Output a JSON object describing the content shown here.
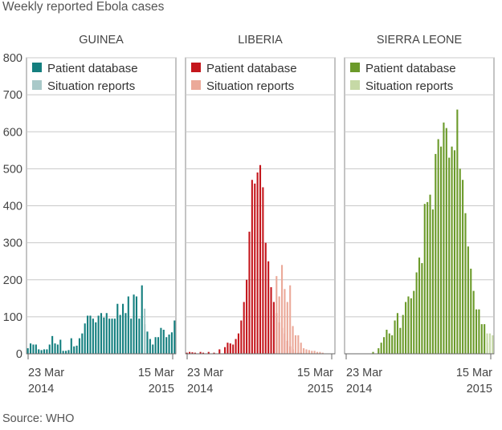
{
  "title": "Weekly reported Ebola cases",
  "source": "Source: WHO",
  "colors": {
    "guinea": {
      "patient": "#147f7f",
      "situation": "#a9c9c9"
    },
    "liberia": {
      "patient": "#c4161c",
      "situation": "#eba999"
    },
    "sierra_leone": {
      "patient": "#6b9a2a",
      "situation": "#c6d9a6"
    }
  },
  "chart_data": [
    {
      "type": "bar",
      "title": "GUINEA",
      "ylim": [
        0,
        800
      ],
      "yticks": [
        "0",
        "100",
        "200",
        "300",
        "400",
        "500",
        "600",
        "700",
        "800"
      ],
      "xticks": [
        {
          "line1": "23 Mar",
          "line2": "2014"
        },
        {
          "line1": "15 Mar",
          "line2": "2015"
        }
      ],
      "legend": [
        "Patient database",
        "Situation reports"
      ],
      "legend_position": "top-left",
      "grid": true,
      "series": [
        {
          "name": "Patient database",
          "values": [
            15,
            28,
            25,
            25,
            12,
            10,
            12,
            12,
            25,
            48,
            28,
            25,
            38,
            8,
            8,
            10,
            42,
            20,
            22,
            42,
            55,
            82,
            103,
            103,
            95,
            85,
            103,
            110,
            98,
            110,
            95,
            95,
            95,
            135,
            105,
            135,
            110,
            155,
            95,
            160,
            155,
            95,
            185,
            80,
            60,
            40,
            25,
            45,
            45,
            70,
            65,
            45,
            52,
            58,
            90
          ]
        },
        {
          "name": "Situation reports",
          "values": [
            0,
            0,
            0,
            0,
            0,
            0,
            0,
            0,
            0,
            0,
            0,
            0,
            0,
            0,
            0,
            0,
            0,
            0,
            0,
            0,
            0,
            0,
            0,
            0,
            0,
            0,
            0,
            0,
            0,
            0,
            0,
            0,
            0,
            0,
            0,
            0,
            0,
            0,
            0,
            0,
            0,
            0,
            0,
            122,
            0,
            0,
            0,
            0,
            0,
            0,
            0,
            0,
            0,
            0,
            0
          ]
        }
      ]
    },
    {
      "type": "bar",
      "title": "LIBERIA",
      "ylim": [
        0,
        800
      ],
      "yticks": [
        "0",
        "100",
        "200",
        "300",
        "400",
        "500",
        "600",
        "700",
        "800"
      ],
      "xticks": [
        {
          "line1": "23 Mar",
          "line2": "2014"
        },
        {
          "line1": "15 Mar",
          "line2": "2015"
        }
      ],
      "legend": [
        "Patient database",
        "Situation reports"
      ],
      "legend_position": "top-left",
      "grid": true,
      "series": [
        {
          "name": "Patient database",
          "values": [
            3,
            5,
            4,
            3,
            0,
            5,
            3,
            0,
            5,
            0,
            3,
            0,
            12,
            0,
            18,
            30,
            28,
            25,
            40,
            55,
            90,
            140,
            200,
            330,
            470,
            460,
            490,
            510,
            450,
            300,
            250,
            180,
            140,
            110,
            85,
            70,
            55,
            35,
            20,
            12,
            5,
            3,
            3,
            0,
            0,
            0,
            0,
            0,
            0,
            0,
            0,
            0,
            0,
            0,
            0
          ]
        },
        {
          "name": "Situation reports",
          "values": [
            0,
            0,
            0,
            0,
            0,
            0,
            0,
            0,
            0,
            0,
            0,
            0,
            0,
            0,
            0,
            0,
            0,
            0,
            0,
            0,
            0,
            0,
            0,
            0,
            0,
            0,
            0,
            0,
            0,
            0,
            0,
            0,
            0,
            210,
            155,
            240,
            175,
            140,
            185,
            75,
            50,
            50,
            30,
            15,
            12,
            10,
            8,
            8,
            5,
            5,
            3,
            0,
            0,
            0,
            0
          ]
        }
      ]
    },
    {
      "type": "bar",
      "title": "SIERRA LEONE",
      "ylim": [
        0,
        800
      ],
      "yticks": [
        "0",
        "100",
        "200",
        "300",
        "400",
        "500",
        "600",
        "700",
        "800"
      ],
      "xticks": [
        {
          "line1": "23 Mar",
          "line2": "2014"
        },
        {
          "line1": "15 Mar",
          "line2": "2015"
        }
      ],
      "legend": [
        "Patient database",
        "Situation reports"
      ],
      "legend_position": "top-left",
      "grid": true,
      "series": [
        {
          "name": "Patient database",
          "values": [
            0,
            0,
            0,
            0,
            0,
            0,
            0,
            0,
            0,
            0,
            5,
            0,
            15,
            30,
            45,
            65,
            55,
            50,
            90,
            110,
            70,
            105,
            140,
            155,
            150,
            170,
            220,
            260,
            245,
            405,
            410,
            430,
            390,
            540,
            580,
            560,
            625,
            610,
            530,
            560,
            550,
            660,
            500,
            470,
            380,
            290,
            230,
            170,
            120,
            120,
            80,
            80,
            30,
            0,
            0
          ]
        },
        {
          "name": "Situation reports",
          "values": [
            0,
            0,
            0,
            0,
            0,
            0,
            0,
            0,
            0,
            0,
            0,
            0,
            0,
            0,
            0,
            0,
            0,
            0,
            0,
            0,
            0,
            0,
            0,
            0,
            0,
            0,
            0,
            0,
            0,
            0,
            0,
            0,
            0,
            0,
            0,
            0,
            0,
            0,
            0,
            0,
            0,
            0,
            0,
            0,
            0,
            0,
            0,
            0,
            0,
            0,
            0,
            0,
            55,
            55,
            50
          ]
        }
      ]
    }
  ]
}
